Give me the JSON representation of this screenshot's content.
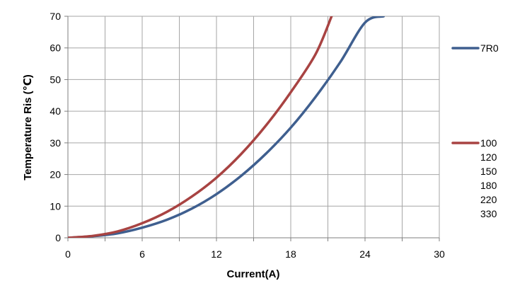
{
  "chart_data": {
    "type": "line",
    "xlabel": "Current(A)",
    "ylabel": "Temperature Ris (℃)",
    "xlim": [
      0,
      30
    ],
    "ylim": [
      0,
      70
    ],
    "x_ticks": [
      "0",
      "6",
      "12",
      "18",
      "24",
      "30"
    ],
    "y_ticks": [
      "0",
      "10",
      "20",
      "30",
      "40",
      "50",
      "60",
      "70"
    ],
    "grid": true,
    "legend_position": "right",
    "series": [
      {
        "name": "7R0",
        "color": "#3f5f8f",
        "x": [
          0,
          2,
          4,
          6,
          8,
          10,
          12,
          14,
          16,
          18,
          20,
          22,
          24,
          25.5
        ],
        "y": [
          0,
          0.5,
          1.4,
          3.2,
          5.7,
          9.2,
          13.8,
          19.6,
          26.6,
          34.8,
          44.5,
          55.5,
          68.0,
          70
        ]
      },
      {
        "name": "100",
        "color": "#a84342",
        "x": [
          0,
          2,
          4,
          6,
          8,
          10,
          12,
          14,
          16,
          18,
          20,
          21.3
        ],
        "y": [
          0,
          0.6,
          2.0,
          4.6,
          8.2,
          13.0,
          19.0,
          26.5,
          35.5,
          46.0,
          58.0,
          70
        ]
      }
    ],
    "legend_entries": [
      {
        "name": "7R0",
        "color": "#3f5f8f"
      },
      {
        "name": "100",
        "color": "#a84342"
      },
      {
        "name": "120",
        "color": ""
      },
      {
        "name": "150",
        "color": ""
      },
      {
        "name": "180",
        "color": ""
      },
      {
        "name": "220",
        "color": ""
      },
      {
        "name": "330",
        "color": ""
      }
    ]
  }
}
